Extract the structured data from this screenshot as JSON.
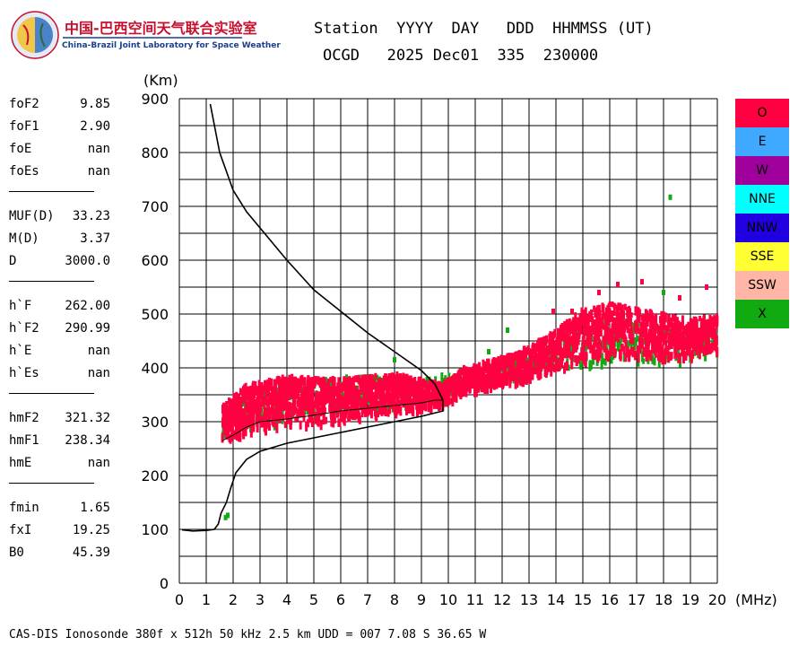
{
  "logo": {
    "name_cn": "中国-巴西空间天气联合实验室",
    "name_en": "China-Brazil Joint Laboratory for Space Weather"
  },
  "header": {
    "labels": "Station  YYYY  DAY   DDD  HHMMSS (UT)",
    "station": "OCGD",
    "year": "2025",
    "day": "Dec01",
    "doy": "335",
    "time": "230000"
  },
  "params": {
    "group1": [
      {
        "name": "foF2",
        "value": "9.85"
      },
      {
        "name": "foF1",
        "value": "2.90"
      },
      {
        "name": "foE",
        "value": "nan"
      },
      {
        "name": "foEs",
        "value": "nan"
      }
    ],
    "group2": [
      {
        "name": "MUF(D)",
        "value": "33.23"
      },
      {
        "name": "M(D)",
        "value": "3.37"
      },
      {
        "name": "D",
        "value": "3000.0"
      }
    ],
    "group3": [
      {
        "name": "h`F",
        "value": "262.00"
      },
      {
        "name": "h`F2",
        "value": "290.99"
      },
      {
        "name": "h`E",
        "value": "nan"
      },
      {
        "name": "h`Es",
        "value": "nan"
      }
    ],
    "group4": [
      {
        "name": "hmF2",
        "value": "321.32"
      },
      {
        "name": "hmF1",
        "value": "238.34"
      },
      {
        "name": "hmE",
        "value": "nan"
      }
    ],
    "group5": [
      {
        "name": "fmin",
        "value": "1.65"
      },
      {
        "name": "fxI",
        "value": "19.25"
      },
      {
        "name": "B0",
        "value": "45.39"
      }
    ]
  },
  "legend": [
    {
      "label": "O",
      "color": "#ff0040"
    },
    {
      "label": "E",
      "color": "#3fa9ff"
    },
    {
      "label": "W",
      "color": "#a0009b"
    },
    {
      "label": "NNE",
      "color": "#00ffff"
    },
    {
      "label": "NNW",
      "color": "#2000e0"
    },
    {
      "label": "SSE",
      "color": "#ffff33"
    },
    {
      "label": "SSW",
      "color": "#ffb6a6"
    },
    {
      "label": "X",
      "color": "#11aa11"
    }
  ],
  "footer": "CAS-DIS Ionosonde 380f x 512h 50 kHz 2.5 km UDD = 007 7.08 S 36.65 W",
  "chart_data": {
    "type": "scatter",
    "xlabel": "(MHz)",
    "ylabel": "(Km)",
    "xlim": [
      0,
      20
    ],
    "ylim": [
      0,
      900
    ],
    "xticks": [
      "0",
      "1",
      "2",
      "3",
      "4",
      "5",
      "6",
      "7",
      "8",
      "9",
      "10",
      "11",
      "12",
      "13",
      "14",
      "15",
      "16",
      "17",
      "18",
      "19",
      "20"
    ],
    "yticks": [
      "0",
      "100",
      "200",
      "300",
      "400",
      "500",
      "600",
      "700",
      "800",
      "900"
    ],
    "grid": true,
    "series": [
      {
        "mode": "O",
        "color": "#ff0040",
        "trace_lower": [
          [
            1.6,
            265
          ],
          [
            2.5,
            275
          ],
          [
            4,
            290
          ],
          [
            6,
            300
          ],
          [
            8,
            315
          ],
          [
            9.8,
            330
          ],
          [
            10.5,
            350
          ],
          [
            12,
            370
          ],
          [
            13,
            380
          ],
          [
            14,
            395
          ],
          [
            15,
            410
          ],
          [
            16,
            420
          ],
          [
            17,
            420
          ],
          [
            18,
            415
          ],
          [
            19,
            420
          ],
          [
            20,
            430
          ]
        ],
        "trace_upper": [
          [
            1.6,
            330
          ],
          [
            2.5,
            370
          ],
          [
            4,
            385
          ],
          [
            6,
            380
          ],
          [
            8,
            390
          ],
          [
            9.8,
            370
          ],
          [
            10.5,
            400
          ],
          [
            12,
            420
          ],
          [
            13,
            440
          ],
          [
            14,
            470
          ],
          [
            15,
            510
          ],
          [
            16,
            520
          ],
          [
            17,
            510
          ],
          [
            18,
            500
          ],
          [
            19,
            490
          ],
          [
            20,
            500
          ]
        ],
        "scattered_points": [
          [
            16.3,
            555
          ],
          [
            15.6,
            540
          ],
          [
            17.2,
            560
          ],
          [
            18.6,
            530
          ],
          [
            19.6,
            550
          ],
          [
            13.9,
            505
          ],
          [
            14.6,
            505
          ]
        ]
      },
      {
        "mode": "X",
        "color": "#11aa11",
        "trace_lower": [
          [
            1.6,
            275
          ],
          [
            3,
            295
          ],
          [
            5,
            305
          ],
          [
            7,
            320
          ],
          [
            9,
            335
          ],
          [
            10,
            355
          ],
          [
            12,
            375
          ],
          [
            14,
            395
          ],
          [
            16,
            410
          ],
          [
            18,
            410
          ],
          [
            20,
            420
          ]
        ],
        "trace_upper": [
          [
            1.6,
            320
          ],
          [
            3,
            365
          ],
          [
            5,
            380
          ],
          [
            7,
            385
          ],
          [
            9,
            380
          ],
          [
            10,
            390
          ],
          [
            12,
            410
          ],
          [
            14,
            450
          ],
          [
            16,
            490
          ],
          [
            18,
            480
          ],
          [
            20,
            470
          ]
        ],
        "scattered_points": [
          [
            18.25,
            717
          ],
          [
            1.8,
            126
          ],
          [
            1.72,
            122
          ],
          [
            18.0,
            540
          ],
          [
            12.2,
            470
          ],
          [
            11.5,
            430
          ],
          [
            8.0,
            415
          ]
        ]
      }
    ],
    "profile_curve": [
      [
        1.15,
        890
      ],
      [
        1.5,
        800
      ],
      [
        2,
        730
      ],
      [
        2.5,
        690
      ],
      [
        3,
        660
      ],
      [
        4,
        600
      ],
      [
        5,
        545
      ],
      [
        6,
        505
      ],
      [
        7,
        465
      ],
      [
        8,
        430
      ],
      [
        9,
        395
      ],
      [
        9.5,
        370
      ],
      [
        9.8,
        340
      ],
      [
        9.8,
        320
      ],
      [
        9,
        310
      ],
      [
        8,
        300
      ],
      [
        7,
        290
      ],
      [
        6,
        280
      ],
      [
        5,
        270
      ],
      [
        4,
        260
      ],
      [
        3,
        245
      ],
      [
        2.5,
        230
      ],
      [
        2.1,
        205
      ],
      [
        1.9,
        175
      ],
      [
        1.75,
        150
      ],
      [
        1.55,
        130
      ],
      [
        1.45,
        110
      ],
      [
        1.3,
        100
      ],
      [
        1.0,
        98
      ],
      [
        0.5,
        97
      ],
      [
        0.1,
        99
      ]
    ],
    "virtual_height_curve": [
      [
        1.6,
        265
      ],
      [
        2,
        275
      ],
      [
        2.5,
        290
      ],
      [
        3,
        300
      ],
      [
        4,
        305
      ],
      [
        5,
        312
      ],
      [
        6,
        320
      ],
      [
        7,
        325
      ],
      [
        8,
        330
      ],
      [
        9,
        335
      ],
      [
        9.5,
        340
      ],
      [
        9.8,
        340
      ]
    ]
  }
}
